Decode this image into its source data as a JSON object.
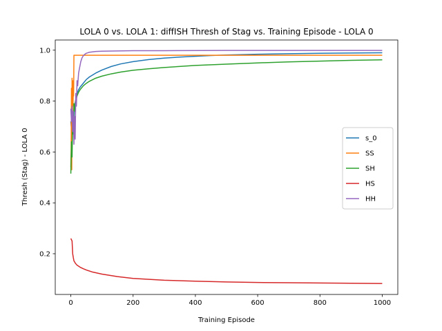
{
  "chart_data": {
    "type": "line",
    "title": "LOLA 0 vs. LOLA 1: diffISH Thresh of Stag vs. Training Episode - LOLA 0",
    "xlabel": "Training Episode",
    "ylabel": "Thresh (Stag) - LOLA 0",
    "xlim": [
      -50,
      1050
    ],
    "ylim": [
      0.04,
      1.04
    ],
    "xticks": [
      0,
      200,
      400,
      600,
      800,
      1000
    ],
    "yticks": [
      0.2,
      0.4,
      0.6,
      0.8,
      1.0
    ],
    "xtick_labels": [
      "0",
      "200",
      "400",
      "600",
      "800",
      "1000"
    ],
    "ytick_labels": [
      "0.2",
      "0.4",
      "0.6",
      "0.8",
      "1.0"
    ],
    "grid": false,
    "legend_position": "center-right",
    "series": [
      {
        "name": "s_0",
        "color": "#1f77b4",
        "x": [
          0,
          2,
          4,
          6,
          8,
          10,
          12,
          15,
          20,
          25,
          30,
          40,
          50,
          60,
          80,
          100,
          130,
          160,
          200,
          250,
          300,
          350,
          400,
          450,
          500,
          600,
          700,
          800,
          900,
          1000
        ],
        "y": [
          0.72,
          0.69,
          0.74,
          0.7,
          0.76,
          0.73,
          0.78,
          0.8,
          0.83,
          0.845,
          0.855,
          0.87,
          0.885,
          0.895,
          0.91,
          0.922,
          0.936,
          0.946,
          0.955,
          0.963,
          0.969,
          0.973,
          0.976,
          0.979,
          0.981,
          0.984,
          0.986,
          0.988,
          0.989,
          0.99
        ]
      },
      {
        "name": "SS",
        "color": "#ff7f0e",
        "x": [
          0,
          1,
          2,
          3,
          4,
          5,
          6,
          7,
          8,
          9,
          10,
          1000
        ],
        "y": [
          0.54,
          0.6,
          0.85,
          0.53,
          0.89,
          0.65,
          0.88,
          0.78,
          0.84,
          0.82,
          0.98,
          0.98
        ]
      },
      {
        "name": "SH",
        "color": "#2ca02c",
        "x": [
          0,
          2,
          4,
          6,
          8,
          10,
          12,
          15,
          20,
          25,
          30,
          40,
          50,
          60,
          80,
          100,
          130,
          160,
          200,
          250,
          300,
          400,
          500,
          600,
          700,
          800,
          900,
          1000
        ],
        "y": [
          0.515,
          0.64,
          0.58,
          0.74,
          0.67,
          0.79,
          0.76,
          0.8,
          0.82,
          0.835,
          0.845,
          0.86,
          0.87,
          0.878,
          0.89,
          0.898,
          0.907,
          0.914,
          0.921,
          0.927,
          0.932,
          0.94,
          0.945,
          0.95,
          0.954,
          0.957,
          0.96,
          0.962
        ]
      },
      {
        "name": "HS",
        "color": "#d62728",
        "x": [
          0,
          2,
          4,
          6,
          8,
          10,
          15,
          20,
          30,
          40,
          50,
          70,
          100,
          150,
          200,
          300,
          400,
          500,
          600,
          700,
          800,
          900,
          1000
        ],
        "y": [
          0.26,
          0.255,
          0.25,
          0.2,
          0.185,
          0.172,
          0.162,
          0.155,
          0.147,
          0.141,
          0.136,
          0.128,
          0.12,
          0.11,
          0.103,
          0.096,
          0.092,
          0.089,
          0.087,
          0.086,
          0.085,
          0.084,
          0.083
        ]
      },
      {
        "name": "HH",
        "color": "#9467bd",
        "x": [
          0,
          2,
          4,
          6,
          8,
          10,
          12,
          14,
          16,
          18,
          20,
          22,
          25,
          28,
          32,
          36,
          40,
          45,
          50,
          60,
          80,
          100,
          150,
          200,
          300,
          500,
          1000
        ],
        "y": [
          0.77,
          0.72,
          0.78,
          0.68,
          0.76,
          0.63,
          0.74,
          0.65,
          0.83,
          0.78,
          0.88,
          0.86,
          0.91,
          0.93,
          0.955,
          0.97,
          0.978,
          0.984,
          0.988,
          0.992,
          0.995,
          0.996,
          0.997,
          0.998,
          0.998,
          0.999,
          0.999
        ]
      }
    ]
  }
}
